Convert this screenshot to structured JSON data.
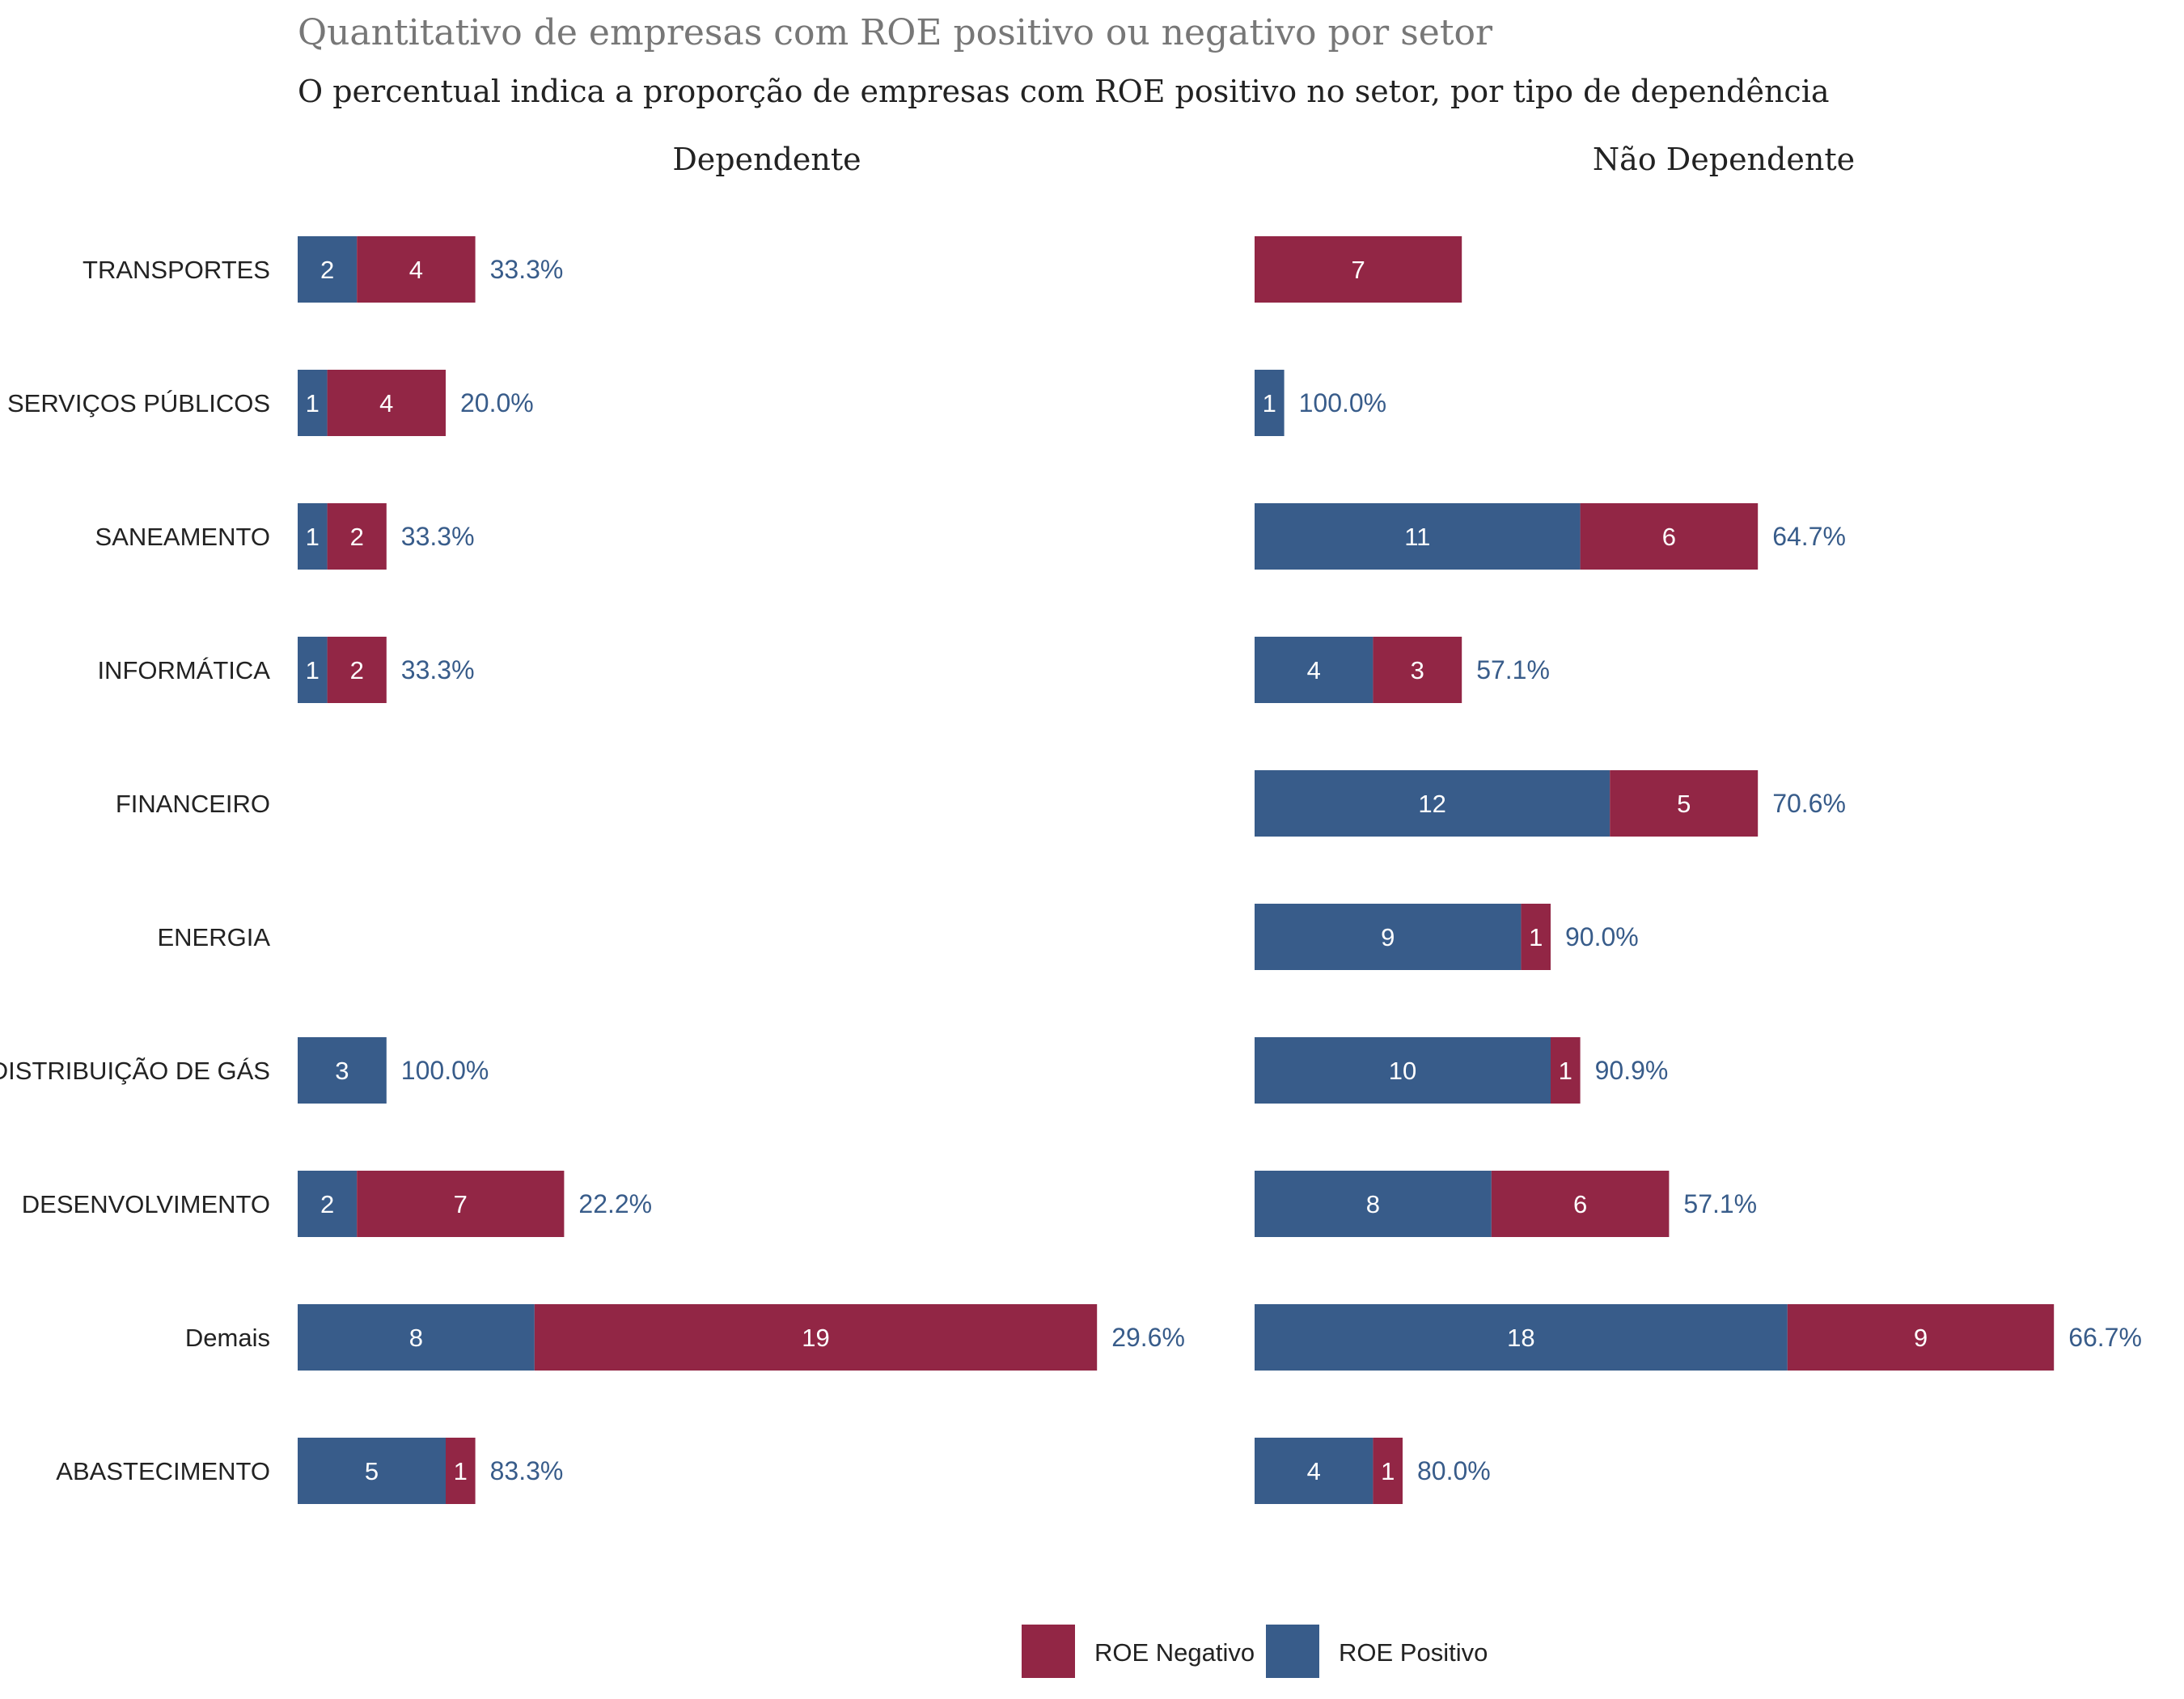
{
  "chart_data": {
    "type": "bar",
    "orientation": "horizontal",
    "stacked": true,
    "title": "Quantitativo de empresas com ROE positivo ou negativo por setor",
    "subtitle": "O percentual indica a proporção de empresas com ROE positivo no setor, por tipo de dependência",
    "categories": [
      "TRANSPORTES",
      "SERVIÇOS PÚBLICOS",
      "SANEAMENTO",
      "INFORMÁTICA",
      "FINANCEIRO",
      "ENERGIA",
      "DISTRIBUIÇÃO DE GÁS",
      "DESENVOLVIMENTO",
      "Demais",
      "ABASTECIMENTO"
    ],
    "legend": {
      "placement": "bottom",
      "items": [
        {
          "name": "ROE Negativo",
          "color": "#922645"
        },
        {
          "name": "ROE Positivo",
          "color": "#385c8a"
        }
      ]
    },
    "colors": {
      "positive": "#385c8a",
      "negative": "#922645",
      "percent_text": "#385c8a",
      "title": "#777777",
      "subtitle": "#222222"
    },
    "xlim": [
      0,
      30
    ],
    "grid": false,
    "panels": [
      {
        "name": "Dependente",
        "positive": [
          2,
          1,
          1,
          1,
          0,
          0,
          3,
          2,
          8,
          5
        ],
        "negative": [
          4,
          4,
          2,
          2,
          0,
          0,
          0,
          7,
          19,
          1
        ],
        "percent_labels": [
          "33.3%",
          "20.0%",
          "33.3%",
          "33.3%",
          "",
          "",
          "100.0%",
          "22.2%",
          "29.6%",
          "83.3%"
        ]
      },
      {
        "name": "Não Dependente",
        "positive": [
          0,
          1,
          11,
          4,
          12,
          9,
          10,
          8,
          18,
          4
        ],
        "negative": [
          7,
          0,
          6,
          3,
          5,
          1,
          1,
          6,
          9,
          1
        ],
        "percent_labels": [
          "",
          "100.0%",
          "64.7%",
          "57.1%",
          "70.6%",
          "90.0%",
          "90.9%",
          "57.1%",
          "66.7%",
          "80.0%"
        ]
      }
    ]
  }
}
